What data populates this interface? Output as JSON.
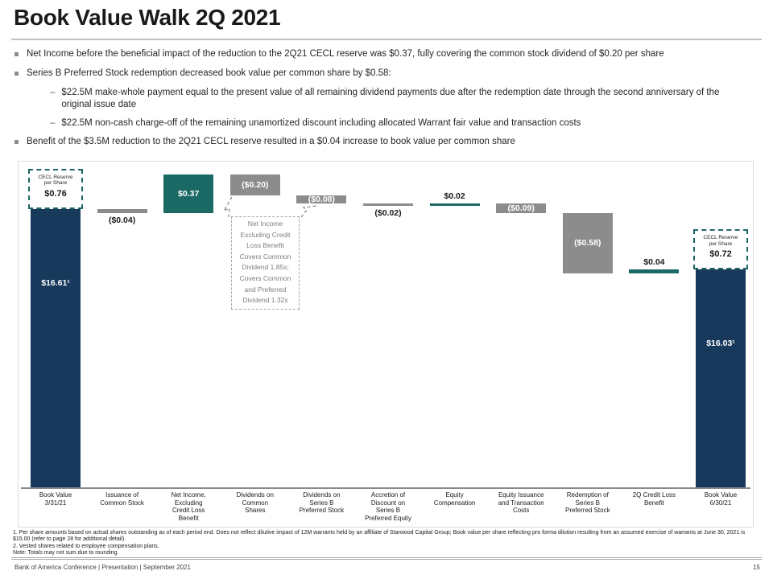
{
  "title": "Book Value Walk 2Q 2021",
  "bullets": {
    "items": [
      {
        "text": "Net Income before the beneficial impact of the reduction to the 2Q21 CECL reserve was $0.37, fully covering the common stock dividend of $0.20 per share"
      },
      {
        "text": "Series B Preferred Stock redemption decreased book value per common share by $0.58:",
        "subs": [
          "$22.5M make-whole payment equal to the present value of all remaining dividend payments due after the redemption date through the second anniversary of the original issue date",
          "$22.5M non-cash charge-off of the remaining unamortized discount including allocated Warrant fair value and transaction costs"
        ]
      },
      {
        "text": "Benefit of the $3.5M reduction to the 2Q21 CECL reserve resulted in a $0.04 increase to book value per common share"
      }
    ]
  },
  "chart_data": {
    "type": "bar",
    "subtype": "waterfall",
    "title": "Book value per common share walk, 2Q 2021 ($ per share)",
    "unit": "USD per common share",
    "ylim_implied": [
      13.9,
      17.0
    ],
    "grid": false,
    "legend": "none",
    "colors": {
      "total": "#17395C",
      "increase": "#1A6964",
      "decrease": "#8C8C8C"
    },
    "steps": [
      {
        "category": "Book Value\n3/31/21",
        "label": "$16.61¹",
        "value": 16.61,
        "kind": "total",
        "color": "total",
        "label_pos": "inside-top"
      },
      {
        "category": "Issuance of\nCommon Stock",
        "label": "($0.04)",
        "value": -0.04,
        "kind": "delta",
        "color": "decrease",
        "label_pos": "below"
      },
      {
        "category": "Net Income,\nExcluding\nCredit Loss\nBenefit",
        "label": "$0.37",
        "value": 0.37,
        "kind": "delta",
        "color": "increase",
        "label_pos": "inside"
      },
      {
        "category": "Dividends on\nCommon\nShares",
        "label": "($0.20)",
        "value": -0.2,
        "kind": "delta",
        "color": "decrease",
        "label_pos": "inside"
      },
      {
        "category": "Dividends on\nSeries B\nPreferred Stock",
        "label": "($0.08)",
        "value": -0.08,
        "kind": "delta",
        "color": "decrease",
        "label_pos": "inside"
      },
      {
        "category": "Accretion of\nDiscount on\nSeries B\nPreferred Equity",
        "label": "($0.02)",
        "value": -0.02,
        "kind": "delta",
        "color": "decrease",
        "label_pos": "below"
      },
      {
        "category": "Equity\nCompensation",
        "label": "$0.02",
        "value": 0.02,
        "kind": "delta",
        "color": "increase",
        "label_pos": "above"
      },
      {
        "category": "Equity Issuance\nand Transaction\nCosts",
        "label": "($0.09)",
        "value": -0.09,
        "kind": "delta",
        "color": "decrease",
        "label_pos": "inside"
      },
      {
        "category": "Redemption of\nSeries B\nPreferred Stock",
        "label": "($0.58)",
        "value": -0.58,
        "kind": "delta",
        "color": "decrease",
        "label_pos": "inside"
      },
      {
        "category": "2Q Credit Loss\nBenefit",
        "label": "$0.04",
        "value": 0.04,
        "kind": "delta",
        "color": "increase",
        "label_pos": "above"
      },
      {
        "category": "Book Value\n6/30/21",
        "label": "$16.03¹",
        "value": 16.03,
        "kind": "total",
        "color": "total",
        "label_pos": "inside-top"
      }
    ],
    "cecl_boxes": [
      {
        "step": 0,
        "title": "CECL Reserve\nper Share",
        "value_label": "$0.76"
      },
      {
        "step": 10,
        "title": "CECL Reserve\nper Share",
        "value_label": "$0.72"
      }
    ],
    "annotation": {
      "text": "Net Income\nExcluding Credit\nLoss Benefit\nCovers Common\nDividend 1.85x;\nCovers Common\nand Preferred\nDividend 1.32x"
    }
  },
  "footnotes": [
    "1. Per share amounts based on actual shares outstanding as of each period end. Does not reflect dilutive impact of 12M warrants held by an affiliate of Starwood Capital Group; Book value per share reflecting pro forma dilution resulting from an assumed exercise of warrants at June 30, 2021 is $15.00 (refer to page 28 for additional detail).",
    "2. Vested shares related to employee compensation plans.",
    "Note: Totals may not sum due to rounding."
  ],
  "footer": {
    "left": "Bank of America Conference | Presentation | September 2021",
    "page": "15"
  }
}
